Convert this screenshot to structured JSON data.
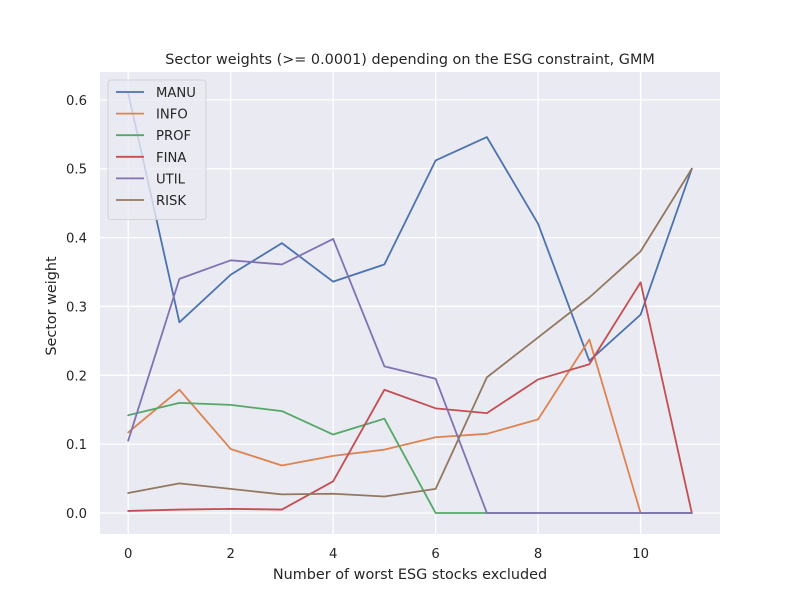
{
  "chart_data": {
    "type": "line",
    "title": "Sector weights (>= 0.0001) depending on the ESG constraint, GMM",
    "xlabel": "Number of worst ESG stocks excluded",
    "ylabel": "Sector weight",
    "xlim": [
      -0.55,
      11.55
    ],
    "ylim": [
      -0.0305,
      0.6405
    ],
    "xticks": [
      0,
      2,
      4,
      6,
      8,
      10
    ],
    "xtick_labels": [
      "0",
      "2",
      "4",
      "6",
      "8",
      "10"
    ],
    "yticks": [
      0.0,
      0.1,
      0.2,
      0.3,
      0.4,
      0.5,
      0.6
    ],
    "ytick_labels": [
      "0.0",
      "0.1",
      "0.2",
      "0.3",
      "0.4",
      "0.5",
      "0.6"
    ],
    "grid": true,
    "legend_position": "top-left",
    "background_color": "#eaeaf2",
    "x": [
      0,
      1,
      2,
      3,
      4,
      5,
      6,
      7,
      8,
      9,
      10,
      11
    ],
    "series": [
      {
        "name": "MANU",
        "color": "#4c72b0",
        "values": [
          0.61,
          0.277,
          0.346,
          0.392,
          0.336,
          0.361,
          0.512,
          0.546,
          0.42,
          0.221,
          0.288,
          0.5
        ]
      },
      {
        "name": "INFO",
        "color": "#dd8452",
        "values": [
          0.117,
          0.179,
          0.093,
          0.069,
          0.083,
          0.092,
          0.11,
          0.115,
          0.136,
          0.252,
          0.0,
          0.0
        ]
      },
      {
        "name": "PROF",
        "color": "#55a868",
        "values": [
          0.142,
          0.16,
          0.157,
          0.148,
          0.114,
          0.137,
          0.0,
          0.0,
          0.0,
          0.0,
          0.0,
          0.0
        ]
      },
      {
        "name": "FINA",
        "color": "#c44e52",
        "values": [
          0.003,
          0.005,
          0.006,
          0.005,
          0.046,
          0.179,
          0.152,
          0.145,
          0.194,
          0.216,
          0.335,
          0.0
        ]
      },
      {
        "name": "UTIL",
        "color": "#8172b3",
        "values": [
          0.105,
          0.34,
          0.367,
          0.361,
          0.398,
          0.213,
          0.195,
          0.0,
          0.0,
          0.0,
          0.0,
          0.0
        ]
      },
      {
        "name": "RISK",
        "color": "#937860",
        "values": [
          0.029,
          0.043,
          0.035,
          0.027,
          0.028,
          0.024,
          0.035,
          0.197,
          0.255,
          0.313,
          0.38,
          0.5
        ]
      }
    ]
  }
}
